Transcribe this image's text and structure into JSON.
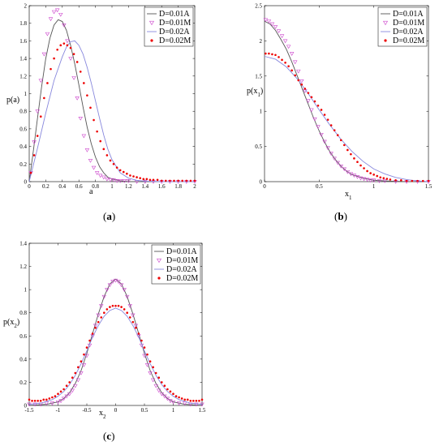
{
  "chart_data": [
    {
      "id": "a",
      "type": "line",
      "caption": "a",
      "xlabel": "a",
      "ylabel": "p(a)",
      "xlim": [
        0,
        2
      ],
      "ylim": [
        0,
        2
      ],
      "xticks": [
        0,
        0.2,
        0.4,
        0.6,
        0.8,
        1,
        1.2,
        1.4,
        1.6,
        1.8,
        2
      ],
      "yticks": [
        0,
        0.2,
        0.4,
        0.6,
        0.8,
        1,
        1.2,
        1.4,
        1.6,
        1.8,
        2
      ],
      "legend_position": "top-right",
      "series": [
        {
          "name": "D=0.01A",
          "style": "line",
          "color": "#555555",
          "x": [
            0,
            0.05,
            0.1,
            0.15,
            0.2,
            0.25,
            0.3,
            0.35,
            0.4,
            0.45,
            0.5,
            0.55,
            0.6,
            0.65,
            0.7,
            0.75,
            0.8,
            0.85,
            0.9,
            0.95,
            1,
            1.1,
            1.2,
            1.4,
            2
          ],
          "y": [
            0,
            0.35,
            0.72,
            1.08,
            1.4,
            1.63,
            1.78,
            1.84,
            1.82,
            1.72,
            1.55,
            1.34,
            1.1,
            0.85,
            0.62,
            0.43,
            0.28,
            0.17,
            0.1,
            0.05,
            0.03,
            0.01,
            0,
            0,
            0
          ]
        },
        {
          "name": "D=0.01M",
          "style": "triangle",
          "color": "#cc44cc",
          "x": [
            0.02,
            0.06,
            0.1,
            0.14,
            0.18,
            0.22,
            0.26,
            0.3,
            0.34,
            0.38,
            0.42,
            0.46,
            0.5,
            0.54,
            0.58,
            0.62,
            0.66,
            0.7,
            0.74,
            0.78,
            0.82,
            0.86,
            0.9,
            0.94,
            0.98,
            1.02,
            1.06,
            1.1,
            1.15,
            1.2,
            1.3,
            1.4,
            1.5,
            1.6,
            1.7,
            1.8,
            1.9,
            2
          ],
          "y": [
            0.1,
            0.45,
            0.8,
            1.15,
            1.45,
            1.68,
            1.85,
            1.93,
            1.95,
            1.9,
            1.78,
            1.6,
            1.4,
            1.18,
            0.95,
            0.72,
            0.52,
            0.36,
            0.24,
            0.16,
            0.1,
            0.07,
            0.05,
            0.03,
            0.02,
            0.02,
            0.01,
            0.01,
            0.01,
            0.01,
            0,
            0,
            0,
            0,
            0,
            0,
            0,
            0
          ]
        },
        {
          "name": "D=0.02A",
          "style": "line",
          "color": "#8888dd",
          "x": [
            0,
            0.1,
            0.2,
            0.3,
            0.4,
            0.45,
            0.5,
            0.55,
            0.6,
            0.65,
            0.7,
            0.75,
            0.8,
            0.85,
            0.9,
            0.95,
            1,
            1.1,
            1.2,
            1.3,
            1.4,
            1.6,
            2
          ],
          "y": [
            0,
            0.38,
            0.78,
            1.15,
            1.42,
            1.53,
            1.59,
            1.6,
            1.55,
            1.45,
            1.3,
            1.12,
            0.92,
            0.72,
            0.53,
            0.37,
            0.25,
            0.1,
            0.04,
            0.015,
            0.005,
            0,
            0
          ]
        },
        {
          "name": "D=0.02M",
          "style": "dot",
          "color": "#ee0000",
          "x": [
            0.02,
            0.06,
            0.1,
            0.14,
            0.18,
            0.22,
            0.26,
            0.3,
            0.34,
            0.38,
            0.42,
            0.46,
            0.5,
            0.54,
            0.58,
            0.62,
            0.66,
            0.7,
            0.74,
            0.78,
            0.82,
            0.86,
            0.9,
            0.94,
            0.98,
            1.02,
            1.06,
            1.1,
            1.14,
            1.18,
            1.22,
            1.26,
            1.3,
            1.34,
            1.38,
            1.42,
            1.46,
            1.5,
            1.55,
            1.6,
            1.65,
            1.7,
            1.75,
            1.8,
            1.85,
            1.9,
            1.95,
            2
          ],
          "y": [
            0.1,
            0.3,
            0.52,
            0.74,
            0.95,
            1.12,
            1.28,
            1.4,
            1.5,
            1.55,
            1.57,
            1.55,
            1.52,
            1.45,
            1.36,
            1.25,
            1.12,
            0.98,
            0.84,
            0.7,
            0.57,
            0.46,
            0.37,
            0.3,
            0.24,
            0.2,
            0.16,
            0.13,
            0.11,
            0.09,
            0.07,
            0.06,
            0.05,
            0.04,
            0.03,
            0.03,
            0.02,
            0.02,
            0.02,
            0.01,
            0.01,
            0.01,
            0.01,
            0.01,
            0.01,
            0.01,
            0.01,
            0.01
          ]
        }
      ]
    },
    {
      "id": "b",
      "type": "line",
      "caption": "b",
      "xlabel": "x",
      "xlabel_sub": "1",
      "ylabel": "p(x",
      "ylabel_sub": "1",
      "ylabel_suffix": ")",
      "xlim": [
        0,
        1.5
      ],
      "ylim": [
        0,
        2.5
      ],
      "xticks": [
        0,
        0.5,
        1,
        1.5
      ],
      "yticks": [
        0,
        0.5,
        1,
        1.5,
        2,
        2.5
      ],
      "legend_position": "top-right",
      "series": [
        {
          "name": "D=0.01A",
          "style": "line",
          "color": "#555555",
          "x": [
            0,
            0.05,
            0.1,
            0.15,
            0.2,
            0.25,
            0.3,
            0.35,
            0.4,
            0.45,
            0.5,
            0.55,
            0.6,
            0.65,
            0.7,
            0.75,
            0.8,
            0.9,
            1,
            1.1,
            1.2,
            1.3,
            1.5
          ],
          "y": [
            2.28,
            2.24,
            2.15,
            2.02,
            1.88,
            1.7,
            1.5,
            1.3,
            1.1,
            0.9,
            0.72,
            0.56,
            0.42,
            0.31,
            0.22,
            0.15,
            0.1,
            0.05,
            0.02,
            0.01,
            0.005,
            0,
            0
          ]
        },
        {
          "name": "D=0.01M",
          "style": "triangle",
          "color": "#cc44cc",
          "x": [
            0.01,
            0.04,
            0.07,
            0.1,
            0.13,
            0.16,
            0.19,
            0.22,
            0.25,
            0.28,
            0.31,
            0.34,
            0.37,
            0.4,
            0.43,
            0.46,
            0.49,
            0.52,
            0.55,
            0.58,
            0.61,
            0.64,
            0.67,
            0.7,
            0.73,
            0.76,
            0.79,
            0.82,
            0.85,
            0.88,
            0.91,
            0.94,
            0.97,
            1,
            1.05,
            1.1,
            1.2,
            1.3,
            1.4,
            1.5
          ],
          "y": [
            2.3,
            2.28,
            2.24,
            2.2,
            2.14,
            2.07,
            2.0,
            1.92,
            1.82,
            1.7,
            1.57,
            1.43,
            1.29,
            1.15,
            1.02,
            0.89,
            0.78,
            0.67,
            0.57,
            0.48,
            0.4,
            0.33,
            0.27,
            0.22,
            0.18,
            0.14,
            0.11,
            0.09,
            0.07,
            0.05,
            0.04,
            0.03,
            0.02,
            0.02,
            0.01,
            0.01,
            0,
            0,
            0,
            0
          ]
        },
        {
          "name": "D=0.02A",
          "style": "line",
          "color": "#8888dd",
          "x": [
            0,
            0.1,
            0.2,
            0.3,
            0.4,
            0.5,
            0.6,
            0.7,
            0.8,
            0.9,
            1,
            1.1,
            1.2,
            1.3,
            1.4,
            1.5
          ],
          "y": [
            1.78,
            1.74,
            1.63,
            1.46,
            1.25,
            1.02,
            0.8,
            0.6,
            0.43,
            0.29,
            0.18,
            0.11,
            0.06,
            0.03,
            0.01,
            0
          ]
        },
        {
          "name": "D=0.02M",
          "style": "dot",
          "color": "#ee0000",
          "x": [
            0.01,
            0.04,
            0.07,
            0.1,
            0.13,
            0.16,
            0.19,
            0.22,
            0.25,
            0.28,
            0.31,
            0.34,
            0.37,
            0.4,
            0.43,
            0.46,
            0.49,
            0.52,
            0.55,
            0.58,
            0.61,
            0.64,
            0.67,
            0.7,
            0.73,
            0.76,
            0.79,
            0.82,
            0.85,
            0.88,
            0.91,
            0.94,
            0.97,
            1,
            1.03,
            1.06,
            1.09,
            1.12,
            1.15,
            1.2,
            1.25,
            1.3,
            1.35,
            1.4,
            1.45,
            1.5
          ],
          "y": [
            1.82,
            1.82,
            1.81,
            1.8,
            1.77,
            1.73,
            1.69,
            1.64,
            1.58,
            1.51,
            1.44,
            1.38,
            1.32,
            1.26,
            1.2,
            1.14,
            1.08,
            1.02,
            0.95,
            0.88,
            0.8,
            0.73,
            0.66,
            0.59,
            0.52,
            0.45,
            0.39,
            0.33,
            0.28,
            0.23,
            0.19,
            0.15,
            0.12,
            0.1,
            0.08,
            0.06,
            0.05,
            0.04,
            0.03,
            0.02,
            0.02,
            0.01,
            0.01,
            0.01,
            0.01,
            0.01
          ]
        }
      ]
    },
    {
      "id": "c",
      "type": "line",
      "caption": "c",
      "xlabel": "x",
      "xlabel_sub": "2",
      "ylabel": "p(x",
      "ylabel_sub": "2",
      "ylabel_suffix": ")",
      "xlim": [
        -1.5,
        1.5
      ],
      "ylim": [
        0,
        1.4
      ],
      "xticks": [
        -1.5,
        -1,
        -0.5,
        0,
        0.5,
        1,
        1.5
      ],
      "yticks": [
        0,
        0.2,
        0.4,
        0.6,
        0.8,
        1,
        1.2,
        1.4
      ],
      "legend_position": "top-right",
      "series": [
        {
          "name": "D=0.01A",
          "style": "line",
          "color": "#555555",
          "x": [
            -1.5,
            -1.2,
            -1,
            -0.9,
            -0.8,
            -0.7,
            -0.6,
            -0.5,
            -0.4,
            -0.3,
            -0.2,
            -0.1,
            0,
            0.1,
            0.2,
            0.3,
            0.4,
            0.5,
            0.6,
            0.7,
            0.8,
            0.9,
            1,
            1.2,
            1.5
          ],
          "y": [
            0,
            0.01,
            0.03,
            0.06,
            0.11,
            0.19,
            0.3,
            0.45,
            0.62,
            0.79,
            0.94,
            1.05,
            1.09,
            1.05,
            0.94,
            0.79,
            0.62,
            0.45,
            0.3,
            0.19,
            0.11,
            0.06,
            0.03,
            0.01,
            0
          ]
        },
        {
          "name": "D=0.01M",
          "style": "triangle",
          "color": "#cc44cc",
          "x": [
            -1.5,
            -1.4,
            -1.3,
            -1.2,
            -1.1,
            -1,
            -0.95,
            -0.9,
            -0.85,
            -0.8,
            -0.75,
            -0.7,
            -0.65,
            -0.6,
            -0.55,
            -0.5,
            -0.45,
            -0.4,
            -0.35,
            -0.3,
            -0.25,
            -0.2,
            -0.15,
            -0.1,
            -0.05,
            0,
            0.05,
            0.1,
            0.15,
            0.2,
            0.25,
            0.3,
            0.35,
            0.4,
            0.45,
            0.5,
            0.55,
            0.6,
            0.65,
            0.7,
            0.75,
            0.8,
            0.85,
            0.9,
            0.95,
            1,
            1.1,
            1.2,
            1.3,
            1.4,
            1.5
          ],
          "y": [
            0.01,
            0.01,
            0.01,
            0.02,
            0.02,
            0.03,
            0.04,
            0.06,
            0.08,
            0.1,
            0.13,
            0.17,
            0.22,
            0.28,
            0.35,
            0.43,
            0.52,
            0.6,
            0.69,
            0.78,
            0.86,
            0.94,
            1.0,
            1.04,
            1.07,
            1.08,
            1.07,
            1.04,
            1.0,
            0.94,
            0.86,
            0.78,
            0.69,
            0.6,
            0.52,
            0.43,
            0.35,
            0.28,
            0.22,
            0.17,
            0.13,
            0.1,
            0.08,
            0.06,
            0.04,
            0.03,
            0.02,
            0.02,
            0.01,
            0.01,
            0.01
          ]
        },
        {
          "name": "D=0.02A",
          "style": "line",
          "color": "#8888dd",
          "x": [
            -1.5,
            -1.3,
            -1.1,
            -1,
            -0.9,
            -0.8,
            -0.7,
            -0.6,
            -0.5,
            -0.4,
            -0.3,
            -0.2,
            -0.1,
            0,
            0.1,
            0.2,
            0.3,
            0.4,
            0.5,
            0.6,
            0.7,
            0.8,
            0.9,
            1,
            1.1,
            1.3,
            1.5
          ],
          "y": [
            0.01,
            0.02,
            0.05,
            0.08,
            0.12,
            0.18,
            0.26,
            0.36,
            0.47,
            0.59,
            0.69,
            0.77,
            0.82,
            0.84,
            0.82,
            0.77,
            0.69,
            0.59,
            0.47,
            0.36,
            0.26,
            0.18,
            0.12,
            0.08,
            0.05,
            0.02,
            0.01
          ]
        },
        {
          "name": "D=0.02M",
          "style": "dot",
          "color": "#ee0000",
          "x": [
            -1.5,
            -1.45,
            -1.4,
            -1.35,
            -1.3,
            -1.25,
            -1.2,
            -1.15,
            -1.1,
            -1.05,
            -1,
            -0.95,
            -0.9,
            -0.85,
            -0.8,
            -0.75,
            -0.7,
            -0.65,
            -0.6,
            -0.55,
            -0.5,
            -0.45,
            -0.4,
            -0.35,
            -0.3,
            -0.25,
            -0.2,
            -0.15,
            -0.1,
            -0.05,
            0,
            0.05,
            0.1,
            0.15,
            0.2,
            0.25,
            0.3,
            0.35,
            0.4,
            0.45,
            0.5,
            0.55,
            0.6,
            0.65,
            0.7,
            0.75,
            0.8,
            0.85,
            0.9,
            0.95,
            1,
            1.05,
            1.1,
            1.15,
            1.2,
            1.25,
            1.3,
            1.35,
            1.4,
            1.45,
            1.5
          ],
          "y": [
            0.05,
            0.04,
            0.04,
            0.04,
            0.04,
            0.05,
            0.05,
            0.06,
            0.07,
            0.08,
            0.1,
            0.12,
            0.14,
            0.17,
            0.2,
            0.24,
            0.28,
            0.33,
            0.38,
            0.44,
            0.5,
            0.56,
            0.62,
            0.67,
            0.72,
            0.76,
            0.8,
            0.83,
            0.85,
            0.86,
            0.86,
            0.86,
            0.85,
            0.83,
            0.8,
            0.76,
            0.72,
            0.67,
            0.62,
            0.56,
            0.5,
            0.44,
            0.38,
            0.33,
            0.28,
            0.24,
            0.2,
            0.17,
            0.14,
            0.12,
            0.1,
            0.08,
            0.07,
            0.06,
            0.05,
            0.05,
            0.04,
            0.04,
            0.04,
            0.04,
            0.05
          ]
        }
      ]
    }
  ]
}
